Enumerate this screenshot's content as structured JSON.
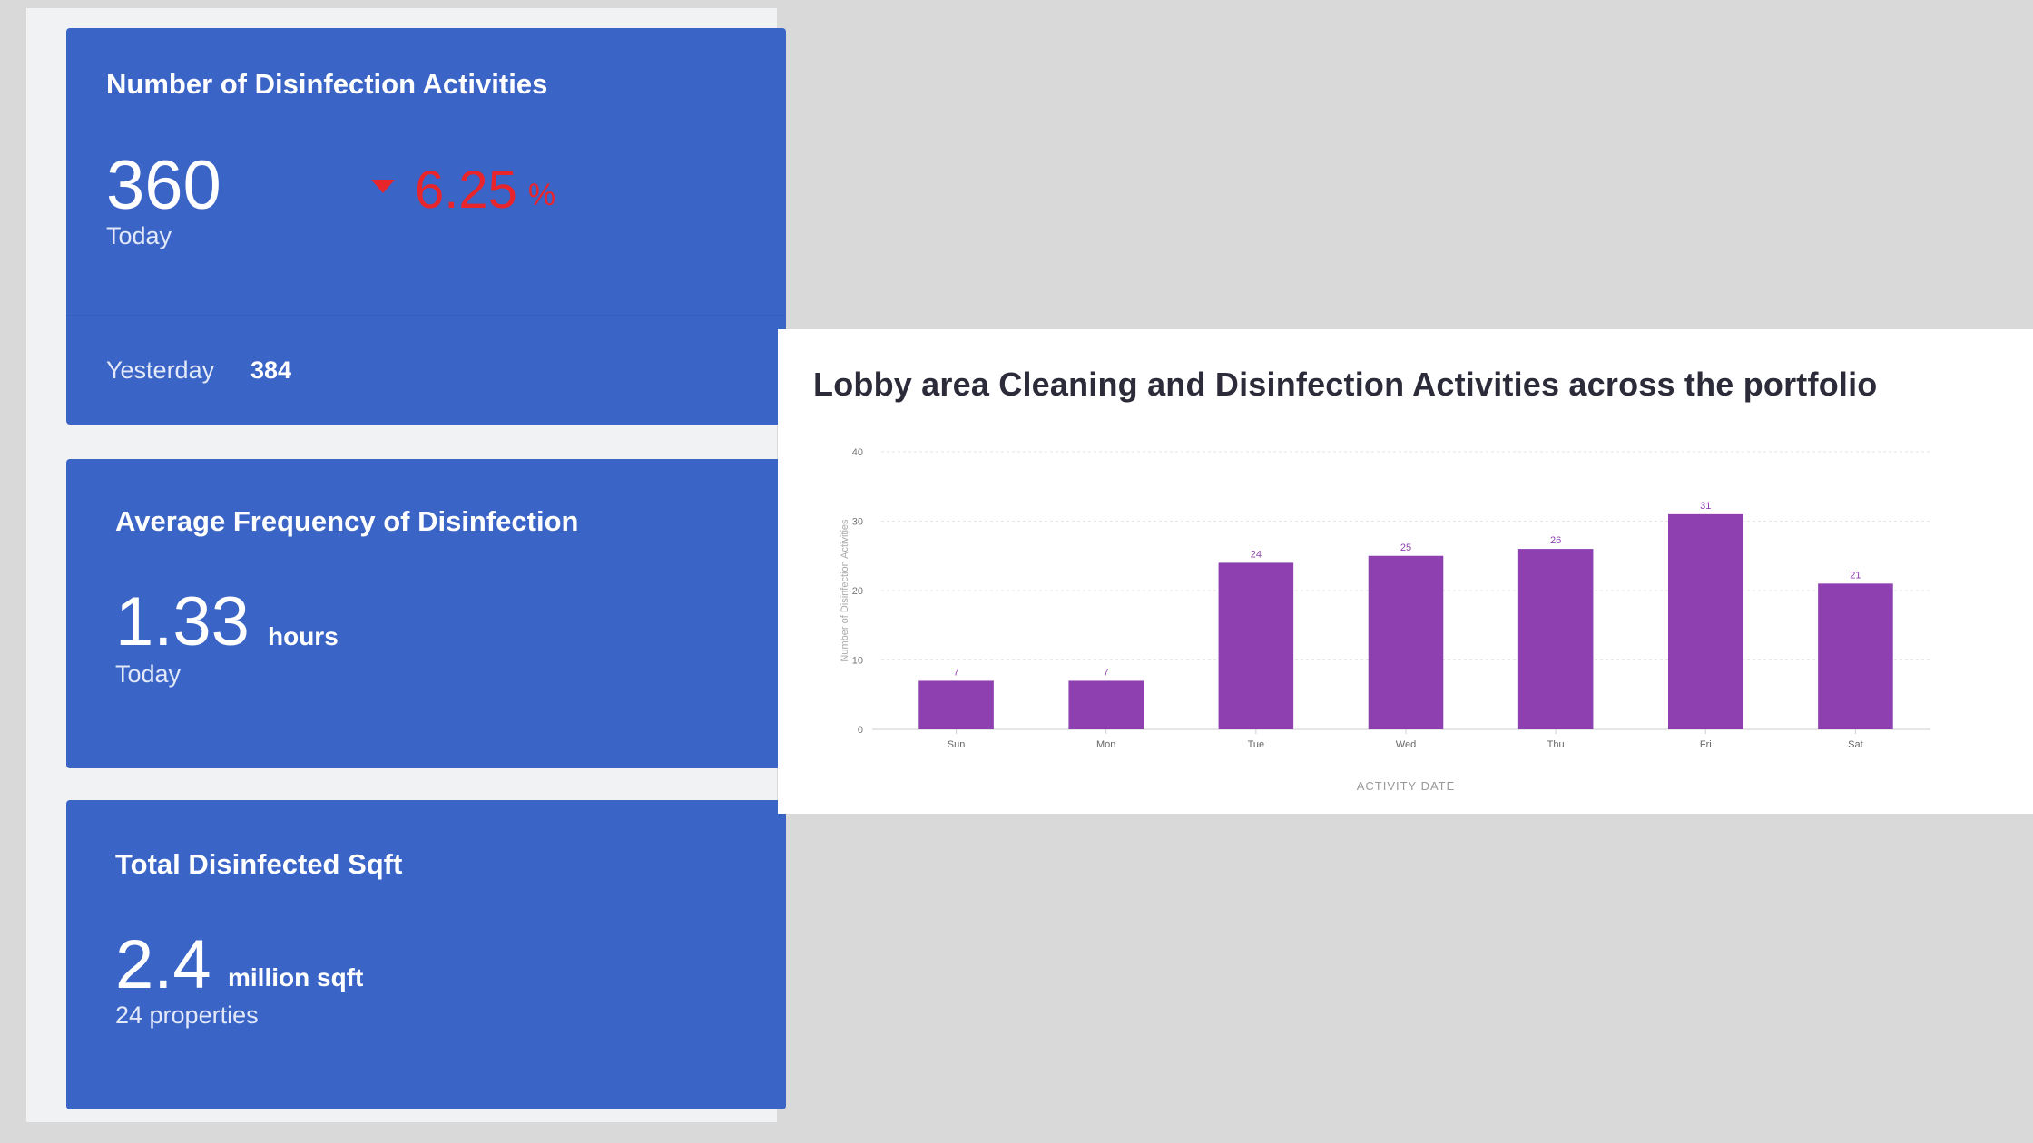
{
  "cards": {
    "activities": {
      "title": "Number of Disinfection Activities",
      "value": "360",
      "period": "Today",
      "change_value": "6.25",
      "change_unit": "%",
      "change_direction": "down",
      "change_color": "#e8252b",
      "yesterday_label": "Yesterday",
      "yesterday_value": "384"
    },
    "frequency": {
      "title": "Average Frequency of Disinfection",
      "value": "1.33",
      "unit": "hours",
      "period": "Today"
    },
    "sqft": {
      "title": "Total Disinfected Sqft",
      "value": "2.4",
      "unit": "million sqft",
      "sub": "24 properties"
    }
  },
  "colors": {
    "card_bg": "#3a64c6",
    "bar": "#8e3fb0"
  },
  "chart_data": {
    "type": "bar",
    "title": "Lobby area Cleaning and Disinfection Activities across the portfolio",
    "categories": [
      "Sun",
      "Mon",
      "Tue",
      "Wed",
      "Thu",
      "Fri",
      "Sat"
    ],
    "values": [
      7,
      7,
      24,
      25,
      26,
      31,
      21
    ],
    "xlabel": "ACTIVITY DATE",
    "ylabel": "Number of Disinfection Activities",
    "ylim": [
      0,
      40
    ],
    "yticks": [
      0,
      10,
      20,
      30,
      40
    ],
    "grid": true,
    "data_labels": true
  }
}
